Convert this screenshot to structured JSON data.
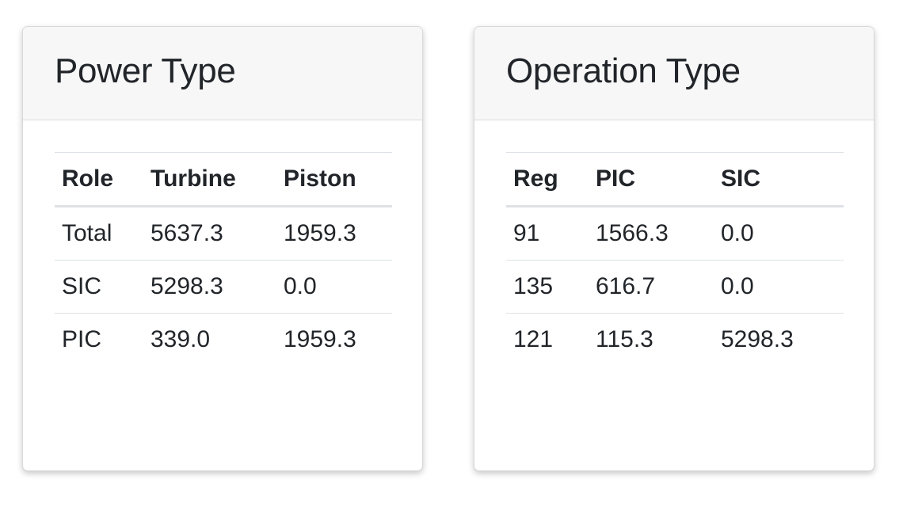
{
  "power_type": {
    "title": "Power Type",
    "headers": [
      "Role",
      "Turbine",
      "Piston"
    ],
    "rows": [
      [
        "Total",
        "5637.3",
        "1959.3"
      ],
      [
        "SIC",
        "5298.3",
        "0.0"
      ],
      [
        "PIC",
        "339.0",
        "1959.3"
      ]
    ]
  },
  "operation_type": {
    "title": "Operation Type",
    "headers": [
      "Reg",
      "PIC",
      "SIC"
    ],
    "rows": [
      [
        "91",
        "1566.3",
        "0.0"
      ],
      [
        "135",
        "616.7",
        "0.0"
      ],
      [
        "121",
        "115.3",
        "5298.3"
      ]
    ]
  }
}
